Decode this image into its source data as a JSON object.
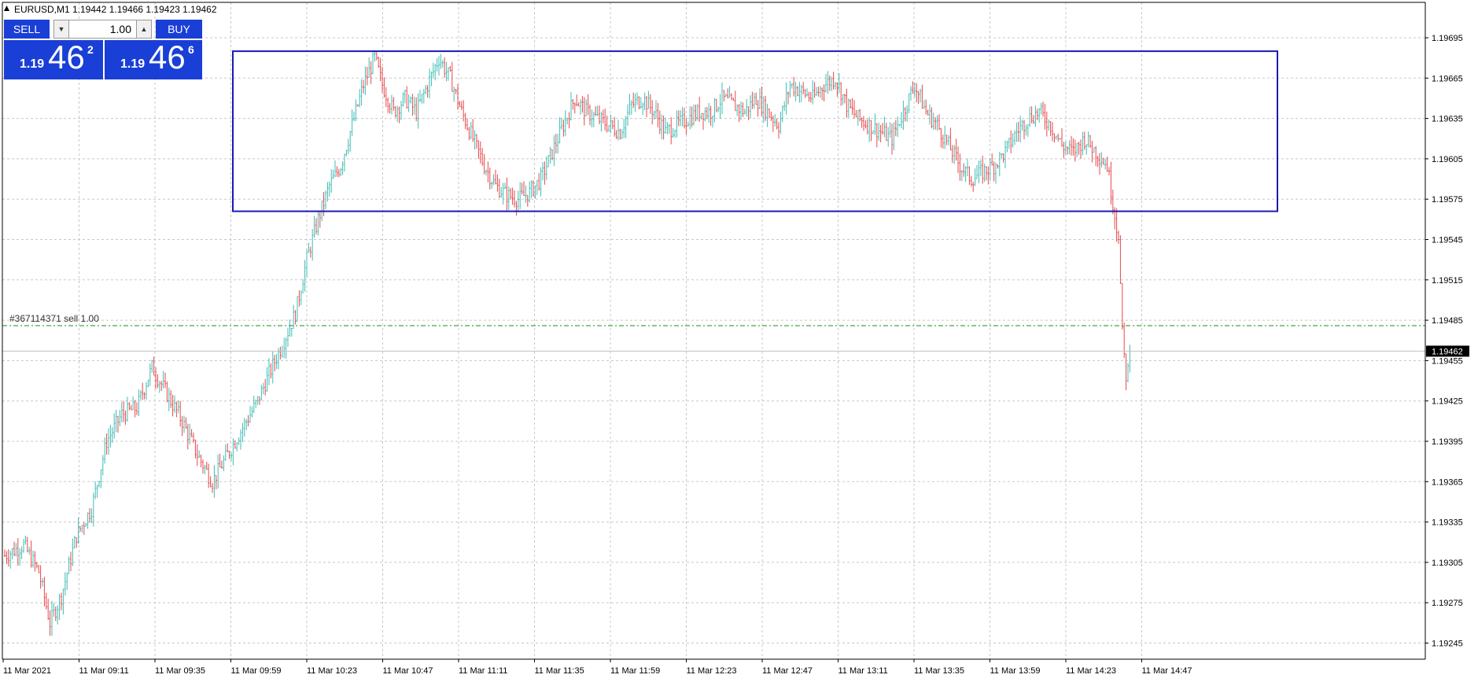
{
  "header": {
    "symbol": "EURUSD,M1",
    "ohlc": "1.19442 1.19466 1.19423 1.19462"
  },
  "trade_panel": {
    "sell_label": "SELL",
    "buy_label": "BUY",
    "lot_value": "1.00",
    "sell_price": {
      "small": "1.19",
      "big": "46",
      "sup": "2"
    },
    "buy_price": {
      "small": "1.19",
      "big": "46",
      "sup": "6"
    }
  },
  "order_line": {
    "label": "#367114371 sell 1.00",
    "price": 1.19481
  },
  "current_price_label": "1.19462",
  "colors": {
    "bull": "#3fbcb4",
    "bear": "#e8474a",
    "box": "#1a1ab4",
    "order": "#1f8a1f",
    "panel": "#1a3fd6"
  },
  "chart_data": {
    "type": "candlestick",
    "y_range": [
      1.1923,
      1.1972
    ],
    "y_ticks": [
      "1.19695",
      "1.19665",
      "1.19635",
      "1.19605",
      "1.19575",
      "1.19545",
      "1.19515",
      "1.19485",
      "1.19455",
      "1.19425",
      "1.19395",
      "1.19365",
      "1.19335",
      "1.19305",
      "1.19275",
      "1.19245"
    ],
    "x_ticks": [
      "11 Mar 2021",
      "11 Mar 09:11",
      "11 Mar 09:35",
      "11 Mar 09:59",
      "11 Mar 10:23",
      "11 Mar 10:47",
      "11 Mar 11:11",
      "11 Mar 11:35",
      "11 Mar 11:59",
      "11 Mar 12:23",
      "11 Mar 12:47",
      "11 Mar 13:11",
      "11 Mar 13:35",
      "11 Mar 13:59",
      "11 Mar 14:23",
      "11 Mar 14:47"
    ],
    "rectangle": {
      "price_top": 1.19685,
      "price_bottom": 1.19566,
      "from_bar": 60,
      "to_bar": 335
    },
    "grid": true,
    "candles_close_path": [
      [
        0,
        1.1931
      ],
      [
        10,
        1.19318
      ],
      [
        18,
        1.19298
      ],
      [
        24,
        1.1926
      ],
      [
        30,
        1.1928
      ],
      [
        38,
        1.19325
      ],
      [
        46,
        1.19345
      ],
      [
        54,
        1.19395
      ],
      [
        62,
        1.19415
      ],
      [
        70,
        1.1942
      ],
      [
        78,
        1.1945
      ],
      [
        86,
        1.1943
      ],
      [
        94,
        1.1941
      ],
      [
        102,
        1.19385
      ],
      [
        110,
        1.19365
      ],
      [
        118,
        1.19385
      ],
      [
        126,
        1.19405
      ],
      [
        134,
        1.19425
      ],
      [
        140,
        1.19445
      ],
      [
        148,
        1.1947
      ],
      [
        154,
        1.1949
      ],
      [
        160,
        1.1953
      ],
      [
        166,
        1.1956
      ],
      [
        172,
        1.19585
      ],
      [
        178,
        1.196
      ],
      [
        184,
        1.1963
      ],
      [
        190,
        1.1966
      ],
      [
        196,
        1.1968
      ],
      [
        200,
        1.1966
      ],
      [
        206,
        1.1964
      ],
      [
        212,
        1.1965
      ],
      [
        218,
        1.1964
      ],
      [
        224,
        1.1966
      ],
      [
        230,
        1.1968
      ],
      [
        236,
        1.19665
      ],
      [
        242,
        1.1964
      ],
      [
        248,
        1.1962
      ],
      [
        254,
        1.196
      ],
      [
        260,
        1.19585
      ],
      [
        266,
        1.19578
      ],
      [
        272,
        1.19575
      ],
      [
        278,
        1.1958
      ],
      [
        284,
        1.1959
      ],
      [
        290,
        1.1961
      ],
      [
        296,
        1.1963
      ],
      [
        302,
        1.1965
      ],
      [
        308,
        1.1964
      ],
      [
        314,
        1.19635
      ],
      [
        320,
        1.1963
      ],
      [
        326,
        1.19625
      ],
      [
        332,
        1.19645
      ],
      [
        338,
        1.1965
      ],
      [
        344,
        1.1964
      ],
      [
        350,
        1.19625
      ],
      [
        356,
        1.1963
      ],
      [
        362,
        1.19635
      ],
      [
        368,
        1.1964
      ],
      [
        374,
        1.1964
      ],
      [
        380,
        1.1965
      ],
      [
        386,
        1.19645
      ],
      [
        392,
        1.1964
      ],
      [
        398,
        1.1965
      ],
      [
        404,
        1.1964
      ],
      [
        410,
        1.1963
      ],
      [
        416,
        1.1966
      ],
      [
        422,
        1.19655
      ],
      [
        428,
        1.1965
      ],
      [
        434,
        1.1966
      ],
      [
        440,
        1.19665
      ],
      [
        446,
        1.19645
      ],
      [
        452,
        1.19635
      ],
      [
        458,
        1.1963
      ],
      [
        464,
        1.19625
      ],
      [
        470,
        1.1962
      ],
      [
        476,
        1.1964
      ],
      [
        482,
        1.1966
      ],
      [
        488,
        1.1964
      ],
      [
        494,
        1.1963
      ],
      [
        500,
        1.19615
      ],
      [
        506,
        1.196
      ],
      [
        512,
        1.1959
      ],
      [
        518,
        1.19595
      ],
      [
        524,
        1.196
      ],
      [
        530,
        1.1961
      ],
      [
        536,
        1.19625
      ],
      [
        542,
        1.19635
      ],
      [
        548,
        1.1964
      ],
      [
        554,
        1.1963
      ],
      [
        560,
        1.19615
      ],
      [
        566,
        1.1961
      ],
      [
        572,
        1.1962
      ],
      [
        578,
        1.1961
      ],
      [
        584,
        1.196
      ],
      [
        590,
        1.19545
      ],
      [
        592,
        1.1948
      ],
      [
        594,
        1.1944
      ],
      [
        596,
        1.19462
      ]
    ]
  }
}
